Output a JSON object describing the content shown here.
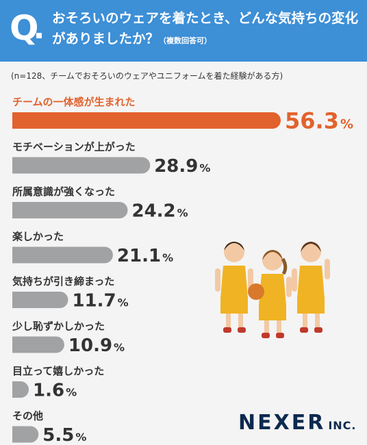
{
  "header": {
    "q_mark": "Q",
    "question": "おそろいのウェアを着たとき、どんな気持ちの変化がありましたか？",
    "note": "（複数回答可）"
  },
  "sample_note": "(n=128、チームでおそろいのウェアやユニフォームを着た経験がある方)",
  "colors": {
    "header": "#3d8fd6",
    "highlight": "#e2622d",
    "bar": "#a1a2a4"
  },
  "chart_data": {
    "type": "bar",
    "orientation": "horizontal",
    "categories": [
      "チームの一体感が生まれた",
      "モチベーションが上がった",
      "所属意識が強くなった",
      "楽しかった",
      "気持ちが引き締まった",
      "少し恥ずかしかった",
      "目立って嬉しかった",
      "その他"
    ],
    "values": [
      56.3,
      28.9,
      24.2,
      21.1,
      11.7,
      10.9,
      1.6,
      5.5
    ],
    "unit": "%",
    "highlight_index": 0,
    "title": "",
    "xlabel": "",
    "ylabel": ""
  },
  "logo": {
    "main": "NEXER",
    "sub": "INC."
  }
}
